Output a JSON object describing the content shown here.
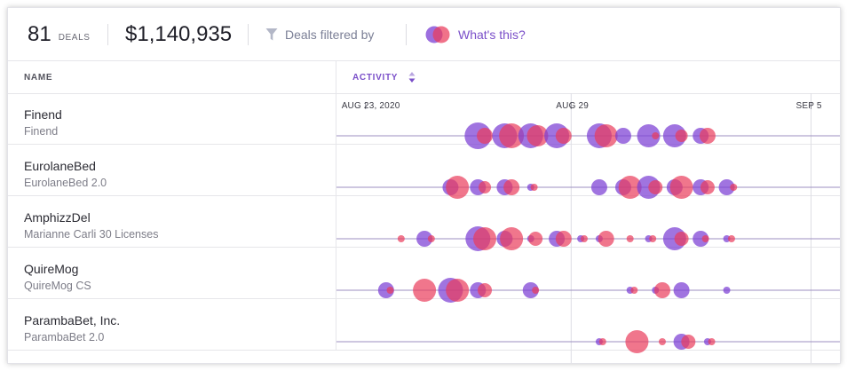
{
  "summary": {
    "deal_count": "81",
    "deals_label": "DEALS",
    "total_value": "$1,140,935",
    "filter_label": "Deals filtered by",
    "whats_this_label": "What's this?"
  },
  "columns": {
    "name": "NAME",
    "activity": "ACTIVITY"
  },
  "timeline": {
    "date_labels": [
      "AUG 23, 2020",
      "AUG 29",
      "SEP 5"
    ],
    "colors": {
      "purple": "#7b3fd4",
      "red": "#ea3c5b",
      "line": "#9c8fc2",
      "grid": "#dedee4"
    }
  },
  "deals": [
    {
      "name": "Finend",
      "subtitle": "Finend",
      "bubbles": [
        {
          "c": "p",
          "t": 16.4,
          "s": 15
        },
        {
          "c": "r",
          "t": 17.4,
          "s": 9
        },
        {
          "c": "p",
          "t": 20.3,
          "s": 14
        },
        {
          "c": "r",
          "t": 21.3,
          "s": 14
        },
        {
          "c": "p",
          "t": 24.1,
          "s": 14
        },
        {
          "c": "r",
          "t": 25.1,
          "s": 12
        },
        {
          "c": "p",
          "t": 27.9,
          "s": 14
        },
        {
          "c": "r",
          "t": 28.9,
          "s": 9
        },
        {
          "c": "p",
          "t": 34.1,
          "s": 14
        },
        {
          "c": "r",
          "t": 35.1,
          "s": 13
        },
        {
          "c": "p",
          "t": 37.6,
          "s": 9
        },
        {
          "c": "p",
          "t": 41.3,
          "s": 13
        },
        {
          "c": "r",
          "t": 42.3,
          "s": 4
        },
        {
          "c": "p",
          "t": 45.1,
          "s": 13
        },
        {
          "c": "r",
          "t": 46.1,
          "s": 7
        },
        {
          "c": "p",
          "t": 48.9,
          "s": 9
        },
        {
          "c": "r",
          "t": 49.9,
          "s": 9
        }
      ]
    },
    {
      "name": "EurolaneBed",
      "subtitle": "EurolaneBed 2.0",
      "bubbles": [
        {
          "c": "p",
          "t": 12.4,
          "s": 9
        },
        {
          "c": "r",
          "t": 13.4,
          "s": 13
        },
        {
          "c": "p",
          "t": 16.4,
          "s": 9
        },
        {
          "c": "r",
          "t": 17.4,
          "s": 7
        },
        {
          "c": "p",
          "t": 20.3,
          "s": 9
        },
        {
          "c": "r",
          "t": 21.3,
          "s": 9
        },
        {
          "c": "p",
          "t": 24.1,
          "s": 4
        },
        {
          "c": "r",
          "t": 24.6,
          "s": 4
        },
        {
          "c": "p",
          "t": 34.1,
          "s": 9
        },
        {
          "c": "p",
          "t": 37.6,
          "s": 9
        },
        {
          "c": "r",
          "t": 38.6,
          "s": 13
        },
        {
          "c": "p",
          "t": 41.3,
          "s": 13
        },
        {
          "c": "r",
          "t": 42.3,
          "s": 8
        },
        {
          "c": "p",
          "t": 45.1,
          "s": 9
        },
        {
          "c": "r",
          "t": 46.1,
          "s": 13
        },
        {
          "c": "p",
          "t": 48.9,
          "s": 9
        },
        {
          "c": "r",
          "t": 49.9,
          "s": 8
        },
        {
          "c": "p",
          "t": 52.7,
          "s": 9
        },
        {
          "c": "r",
          "t": 53.7,
          "s": 4
        }
      ]
    },
    {
      "name": "AmphizzDel",
      "subtitle": "Marianne Carli 30 Licenses",
      "bubbles": [
        {
          "c": "r",
          "t": 5.2,
          "s": 4
        },
        {
          "c": "p",
          "t": 8.6,
          "s": 9
        },
        {
          "c": "r",
          "t": 9.6,
          "s": 4
        },
        {
          "c": "p",
          "t": 16.4,
          "s": 14
        },
        {
          "c": "r",
          "t": 17.4,
          "s": 13
        },
        {
          "c": "p",
          "t": 20.3,
          "s": 9
        },
        {
          "c": "r",
          "t": 21.3,
          "s": 13
        },
        {
          "c": "p",
          "t": 24.1,
          "s": 4
        },
        {
          "c": "r",
          "t": 24.8,
          "s": 8
        },
        {
          "c": "p",
          "t": 27.9,
          "s": 9
        },
        {
          "c": "r",
          "t": 28.9,
          "s": 9
        },
        {
          "c": "p",
          "t": 31.4,
          "s": 4
        },
        {
          "c": "r",
          "t": 31.9,
          "s": 4
        },
        {
          "c": "p",
          "t": 34.1,
          "s": 4
        },
        {
          "c": "r",
          "t": 35.1,
          "s": 9
        },
        {
          "c": "r",
          "t": 38.6,
          "s": 4
        },
        {
          "c": "p",
          "t": 41.3,
          "s": 4
        },
        {
          "c": "r",
          "t": 41.9,
          "s": 4
        },
        {
          "c": "p",
          "t": 45.1,
          "s": 13
        },
        {
          "c": "r",
          "t": 46.1,
          "s": 8
        },
        {
          "c": "p",
          "t": 48.9,
          "s": 9
        },
        {
          "c": "r",
          "t": 49.6,
          "s": 4
        },
        {
          "c": "p",
          "t": 52.7,
          "s": 4
        },
        {
          "c": "r",
          "t": 53.4,
          "s": 4
        }
      ]
    },
    {
      "name": "QuireMog",
      "subtitle": "QuireMog CS",
      "bubbles": [
        {
          "c": "p",
          "t": 3.0,
          "s": 9
        },
        {
          "c": "r",
          "t": 3.6,
          "s": 4
        },
        {
          "c": "r",
          "t": 8.6,
          "s": 13
        },
        {
          "c": "p",
          "t": 12.4,
          "s": 14
        },
        {
          "c": "r",
          "t": 13.4,
          "s": 13
        },
        {
          "c": "p",
          "t": 16.4,
          "s": 9
        },
        {
          "c": "r",
          "t": 17.4,
          "s": 8
        },
        {
          "c": "p",
          "t": 24.1,
          "s": 9
        },
        {
          "c": "r",
          "t": 24.8,
          "s": 4
        },
        {
          "c": "p",
          "t": 38.6,
          "s": 4
        },
        {
          "c": "r",
          "t": 39.2,
          "s": 4
        },
        {
          "c": "p",
          "t": 42.3,
          "s": 4
        },
        {
          "c": "r",
          "t": 43.3,
          "s": 9
        },
        {
          "c": "p",
          "t": 46.1,
          "s": 9
        },
        {
          "c": "p",
          "t": 52.7,
          "s": 4
        }
      ]
    },
    {
      "name": "ParambaBet, Inc.",
      "subtitle": "ParambaBet 2.0",
      "bubbles": [
        {
          "c": "p",
          "t": 34.1,
          "s": 4
        },
        {
          "c": "r",
          "t": 34.6,
          "s": 4
        },
        {
          "c": "r",
          "t": 39.6,
          "s": 13
        },
        {
          "c": "r",
          "t": 43.3,
          "s": 4
        },
        {
          "c": "p",
          "t": 46.1,
          "s": 9
        },
        {
          "c": "r",
          "t": 47.1,
          "s": 8
        },
        {
          "c": "p",
          "t": 49.9,
          "s": 4
        },
        {
          "c": "r",
          "t": 50.5,
          "s": 4
        }
      ]
    }
  ]
}
